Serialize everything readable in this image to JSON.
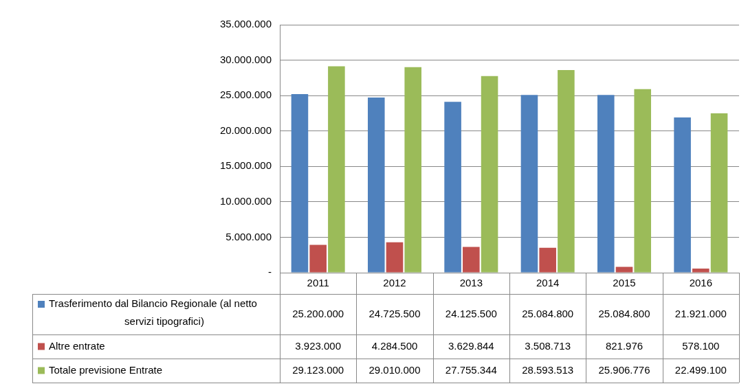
{
  "chart_data": {
    "type": "bar",
    "categories": [
      "2011",
      "2012",
      "2013",
      "2014",
      "2015",
      "2016"
    ],
    "series": [
      {
        "name": "Trasferimento dal Bilancio Regionale (al netto servizi tipografici)",
        "color": "#4f81bd",
        "values": [
          25200000,
          24725500,
          24125500,
          25084800,
          25084800,
          21921000
        ],
        "value_labels": [
          "25.200.000",
          "24.725.500",
          "24.125.500",
          "25.084.800",
          "25.084.800",
          "21.921.000"
        ]
      },
      {
        "name": "Altre entrate",
        "color": "#c0504d",
        "values": [
          3923000,
          4284500,
          3629844,
          3508713,
          821976,
          578100
        ],
        "value_labels": [
          "3.923.000",
          "4.284.500",
          "3.629.844",
          "3.508.713",
          "821.976",
          "578.100"
        ]
      },
      {
        "name": "Totale previsione Entrate",
        "color": "#9bbb59",
        "values": [
          29123000,
          29010000,
          27755344,
          28593513,
          25906776,
          22499100
        ],
        "value_labels": [
          "29.123.000",
          "29.010.000",
          "27.755.344",
          "28.593.513",
          "25.906.776",
          "22.499.100"
        ]
      }
    ],
    "ylim": [
      0,
      35000000
    ],
    "yticks": [
      {
        "value": 0,
        "label": "-"
      },
      {
        "value": 5000000,
        "label": "5.000.000"
      },
      {
        "value": 10000000,
        "label": "10.000.000"
      },
      {
        "value": 15000000,
        "label": "15.000.000"
      },
      {
        "value": 20000000,
        "label": "20.000.000"
      },
      {
        "value": 25000000,
        "label": "25.000.000"
      },
      {
        "value": 30000000,
        "label": "30.000.000"
      },
      {
        "value": 35000000,
        "label": "35.000.000"
      }
    ],
    "grid": "y",
    "legend": "bottom"
  }
}
